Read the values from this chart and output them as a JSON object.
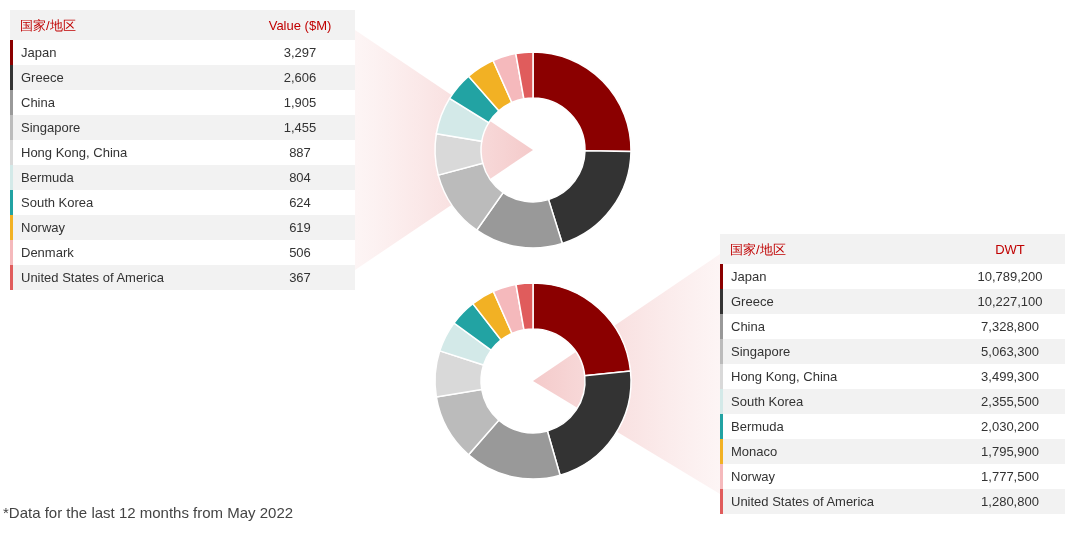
{
  "chart_data": [
    {
      "type": "donut",
      "legend_title": "国家/地区",
      "ylabel": "Value ($M)",
      "legend": "left",
      "value_labels": [
        "3,297",
        "2,606",
        "1,905",
        "1,455",
        "887",
        "804",
        "624",
        "619",
        "506",
        "367"
      ],
      "categories": [
        "Japan",
        "Greece",
        "China",
        "Singapore",
        "Hong Kong, China",
        "Bermuda",
        "South Korea",
        "Norway",
        "Denmark",
        "United States of America"
      ],
      "values": [
        3297,
        2606,
        1905,
        1455,
        887,
        804,
        624,
        619,
        506,
        367
      ],
      "colors": [
        "#8b0000",
        "#333333",
        "#999999",
        "#bbbbbb",
        "#d9d9d9",
        "#d3e9e8",
        "#22a3a3",
        "#f2b124",
        "#f5b9bc",
        "#e05c5c"
      ],
      "annotations": [
        "*Data for the last 12 months from May 2022"
      ]
    },
    {
      "type": "donut",
      "legend_title": "国家/地区",
      "ylabel": "DWT",
      "legend": "right",
      "value_labels": [
        "10,789,200",
        "10,227,100",
        "7,328,800",
        "5,063,300",
        "3,499,300",
        "2,355,500",
        "2,030,200",
        "1,795,900",
        "1,777,500",
        "1,280,800"
      ],
      "categories": [
        "Japan",
        "Greece",
        "China",
        "Singapore",
        "Hong Kong, China",
        "South Korea",
        "Bermuda",
        "Monaco",
        "Norway",
        "United States of America"
      ],
      "values": [
        10789200,
        10227100,
        7328800,
        5063300,
        3499300,
        2355500,
        2030200,
        1795900,
        1777500,
        1280800
      ],
      "colors": [
        "#8b0000",
        "#333333",
        "#999999",
        "#bbbbbb",
        "#d9d9d9",
        "#d3e9e8",
        "#22a3a3",
        "#f2b124",
        "#f5b9bc",
        "#e05c5c"
      ]
    }
  ]
}
